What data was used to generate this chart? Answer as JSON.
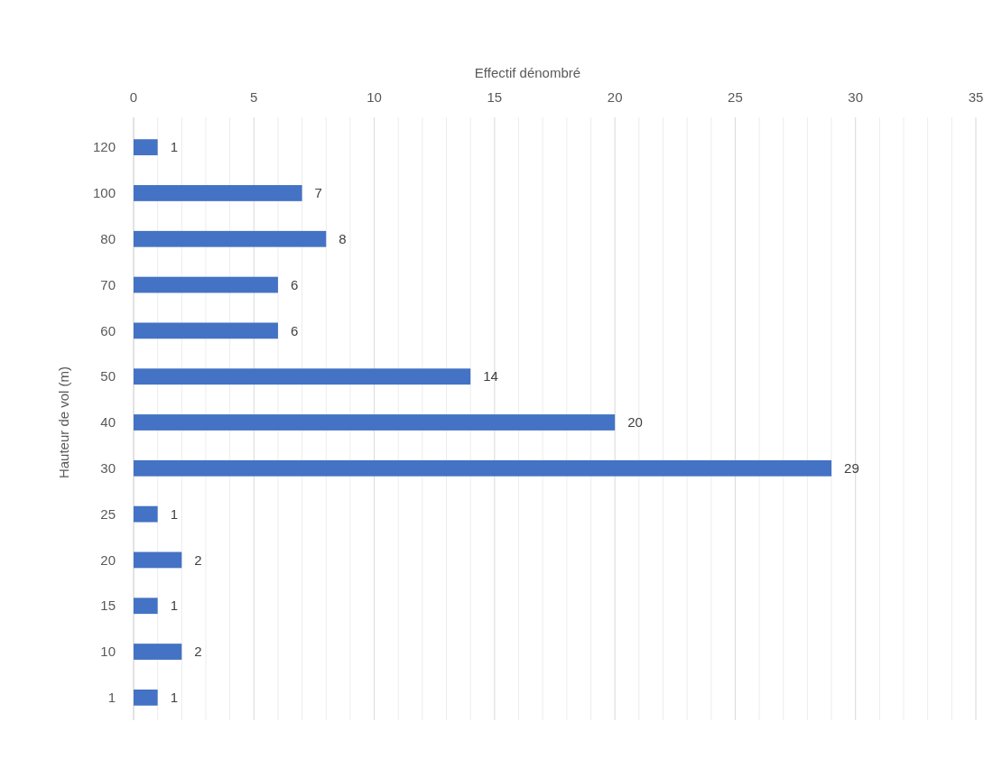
{
  "chart_data": {
    "type": "bar",
    "orientation": "horizontal",
    "xlabel": "Effectif dénombré",
    "ylabel": "Hauteur de vol (m)",
    "categories": [
      "120",
      "100",
      "80",
      "70",
      "60",
      "50",
      "40",
      "30",
      "25",
      "20",
      "15",
      "10",
      "1"
    ],
    "values": [
      1,
      7,
      8,
      6,
      6,
      14,
      20,
      29,
      1,
      2,
      1,
      2,
      1
    ],
    "color": "#4472c4",
    "data_labels": true,
    "grid": "x",
    "xlim": [
      0,
      35
    ],
    "xticks": [
      0,
      {
        "value": 1,
        "label": null
      },
      {
        "value": 2,
        "label": null
      },
      {
        "value": 3,
        "label": null
      },
      {
        "value": 4,
        "label": null
      },
      5,
      {
        "value": 6,
        "label": null
      },
      {
        "value": 7,
        "label": null
      },
      {
        "value": 8,
        "label": null
      },
      {
        "value": 9,
        "label": null
      },
      10,
      {
        "value": 11,
        "label": null
      },
      {
        "value": 12,
        "label": null
      },
      {
        "value": 13,
        "label": null
      },
      {
        "value": 14,
        "label": null
      },
      15,
      {
        "value": 16,
        "label": null
      },
      {
        "value": 17,
        "label": null
      },
      {
        "value": 18,
        "label": null
      },
      {
        "value": 19,
        "label": null
      },
      20,
      {
        "value": 21,
        "label": null
      },
      {
        "value": 22,
        "label": null
      },
      {
        "value": 23,
        "label": null
      },
      {
        "value": 24,
        "label": null
      },
      25,
      {
        "value": 26,
        "label": null
      },
      {
        "value": 27,
        "label": null
      },
      {
        "value": 28,
        "label": null
      },
      {
        "value": 29,
        "label": null
      },
      30,
      {
        "value": 31,
        "label": null
      },
      {
        "value": 32,
        "label": null
      },
      {
        "value": 33,
        "label": null
      },
      {
        "value": 34,
        "label": null
      },
      35
    ]
  }
}
